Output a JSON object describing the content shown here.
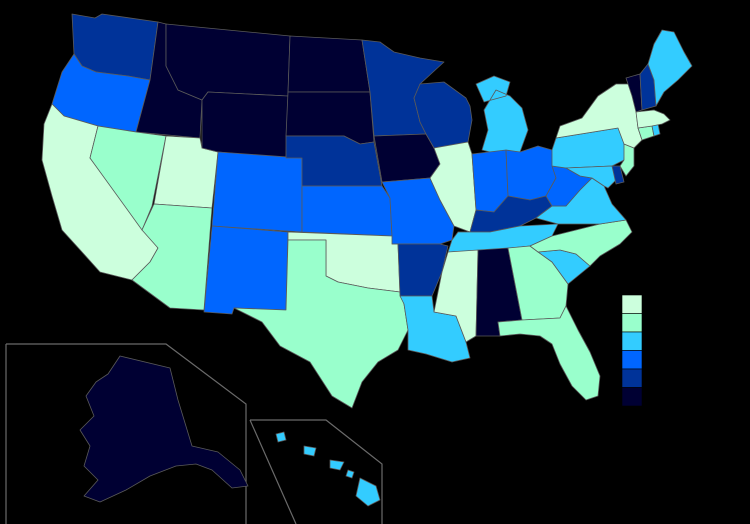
{
  "map": {
    "palette": {
      "c1": "#ccffdd",
      "c2": "#99ffcc",
      "c3": "#33ccff",
      "c4": "#0066ff",
      "c5": "#003399",
      "c6": "#000033"
    },
    "legend": {
      "classes": [
        "c1",
        "c2",
        "c3",
        "c4",
        "c5",
        "c6"
      ]
    },
    "states": {
      "WA": "c5",
      "OR": "c4",
      "CA": "c1",
      "ID": "c6",
      "NV": "c2",
      "UT": "c1",
      "AZ": "c2",
      "MT": "c6",
      "WY": "c6",
      "CO": "c4",
      "NM": "c4",
      "ND": "c6",
      "SD": "c6",
      "NE": "c5",
      "KS": "c4",
      "OK": "c1",
      "TX": "c2",
      "MN": "c5",
      "IA": "c6",
      "MO": "c4",
      "AR": "c5",
      "LA": "c3",
      "WI": "c5",
      "IL": "c1",
      "MI": "c3",
      "IN": "c4",
      "OH": "c4",
      "KY": "c5",
      "TN": "c3",
      "MS": "c1",
      "AL": "c6",
      "GA": "c2",
      "FL": "c2",
      "SC": "c3",
      "NC": "c2",
      "VA": "c3",
      "WV": "c4",
      "PA": "c3",
      "NY": "c1",
      "VT": "c6",
      "NH": "c5",
      "ME": "c3",
      "MA": "c1",
      "CT": "c2",
      "RI": "c3",
      "NJ": "c2",
      "DE": "c5",
      "MD": "c3",
      "AK": "c6",
      "HI": "c3"
    }
  }
}
